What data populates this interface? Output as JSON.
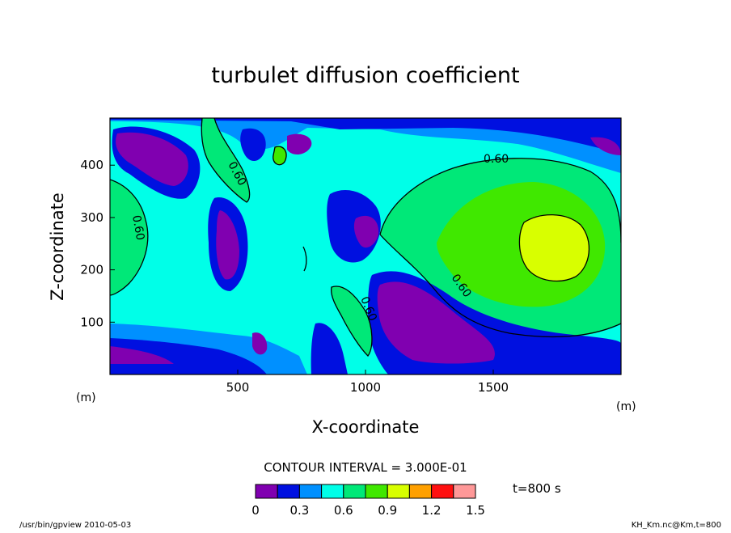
{
  "chart_data": {
    "type": "contour",
    "title": "turbulet diffusion coefficient",
    "xlabel": "X-coordinate",
    "ylabel": "Z-coordinate",
    "x_unit": "(m)",
    "y_unit": "(m)",
    "xlim": [
      0,
      2000
    ],
    "ylim": [
      0,
      490
    ],
    "x_ticks": [
      500,
      1000,
      1500
    ],
    "y_ticks": [
      100,
      200,
      300,
      400
    ],
    "contour_interval_text": "CONTOUR INTERVAL = 3.000E-01",
    "time_label": "t=800 s",
    "contour_labels": [
      "0.60",
      "0.60",
      "0.60",
      "0.60",
      "0.60"
    ],
    "colorbar": {
      "levels": [
        "0",
        "0.3",
        "0.6",
        "0.9",
        "1.2",
        "1.5"
      ],
      "colors": [
        "#8000b0",
        "#0010e0",
        "#0090ff",
        "#00ffe8",
        "#00e878",
        "#40e800",
        "#d8ff00",
        "#ffa000",
        "#ff1010",
        "#ff9898"
      ]
    }
  },
  "footer": {
    "left": "/usr/bin/gpview  2010-05-03",
    "right": "KH_Km.nc@Km,t=800"
  }
}
